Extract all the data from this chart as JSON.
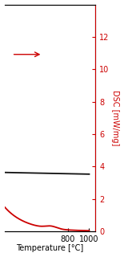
{
  "xlabel": "Temperature [°C]",
  "ylabel_right": "DSC [mW/mg]",
  "xlim": [
    200,
    1060
  ],
  "ylim_left": [
    -0.5,
    1.5
  ],
  "ylim_right": [
    0,
    14
  ],
  "yticks_right": [
    0,
    2,
    4,
    6,
    8,
    10,
    12
  ],
  "xticks": [
    800,
    1000
  ],
  "tg_color": "#111111",
  "dsc_color": "#cc0000",
  "background_color": "#ffffff",
  "figwidth": 1.55,
  "figheight": 3.2
}
